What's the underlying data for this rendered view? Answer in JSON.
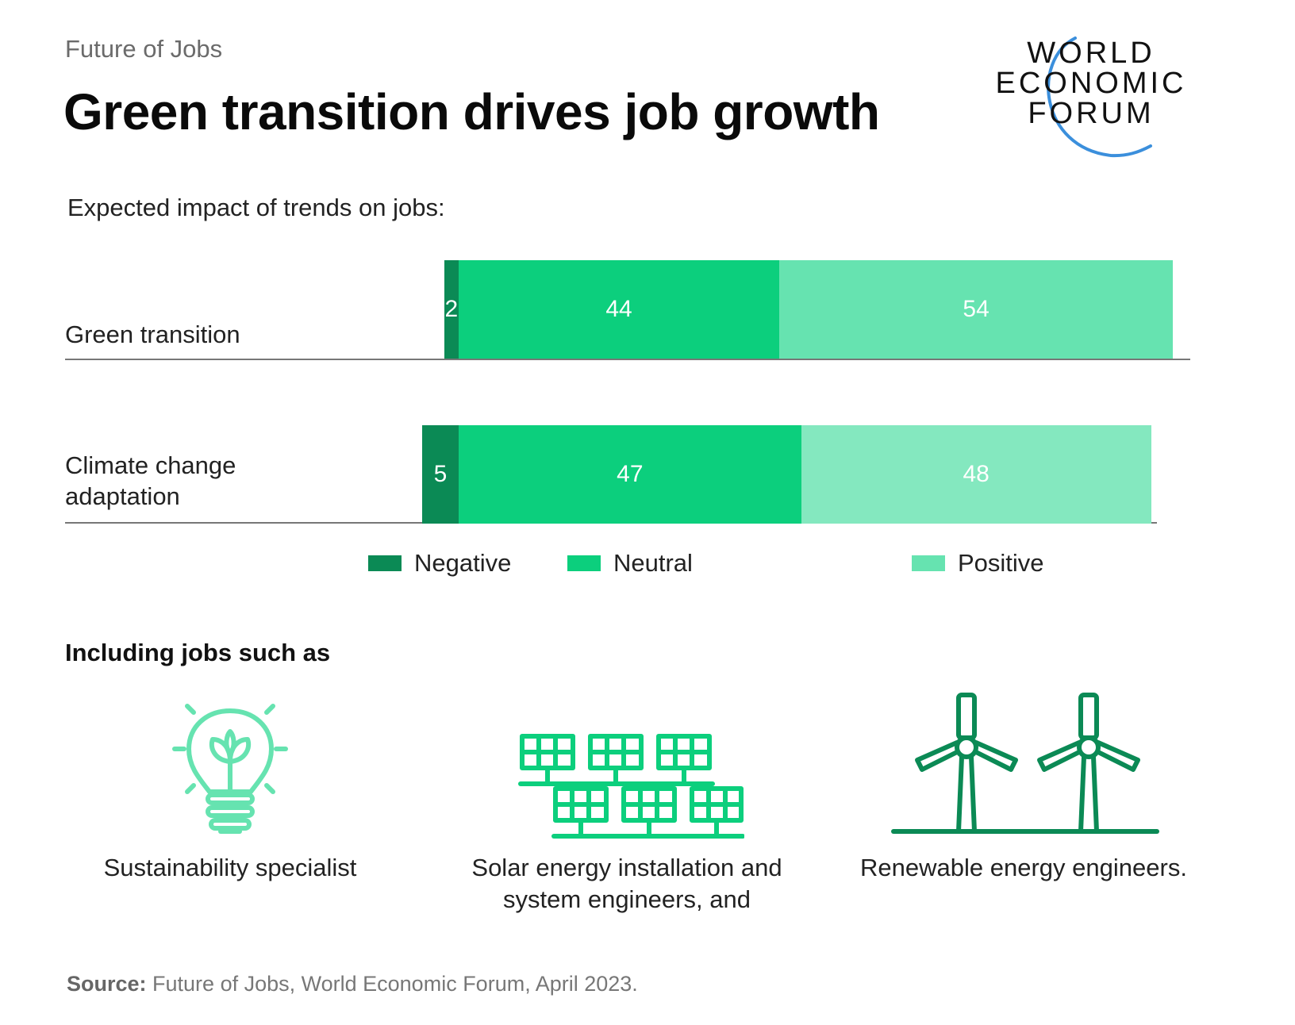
{
  "header": {
    "kicker": "Future of Jobs",
    "title": "Green transition drives job growth",
    "logo_lines": [
      "WORLD",
      "ECONOMIC",
      "FORUM"
    ]
  },
  "chart_data": {
    "type": "bar",
    "orientation": "horizontal",
    "stacked": true,
    "title": "Expected impact of trends on jobs:",
    "categories": [
      "Green transition",
      "Climate change adaptation"
    ],
    "series": [
      {
        "name": "Negative",
        "values": [
          2,
          5
        ],
        "color": "#0b8a55"
      },
      {
        "name": "Neutral",
        "values": [
          44,
          47
        ],
        "color": "#0ccf7d"
      },
      {
        "name": "Positive",
        "values": [
          54,
          48
        ],
        "color": "#66e3b0"
      }
    ],
    "positive_color_row2": "#84e8bf",
    "legend_position": "bottom"
  },
  "jobs": {
    "heading": "Including jobs such as",
    "items": [
      {
        "icon": "lightbulb-plant-icon",
        "caption_lines": [
          "Sustainability specialist"
        ],
        "color": "#66e3b0"
      },
      {
        "icon": "solar-panels-icon",
        "caption_lines": [
          "Solar energy installation and",
          "system engineers, and"
        ],
        "color": "#0ccf7d"
      },
      {
        "icon": "wind-turbines-icon",
        "caption_lines": [
          "Renewable energy engineers."
        ],
        "color": "#0b8a55"
      }
    ]
  },
  "source": {
    "label": "Source:",
    "text": " Future of Jobs, World Economic Forum, April 2023."
  }
}
